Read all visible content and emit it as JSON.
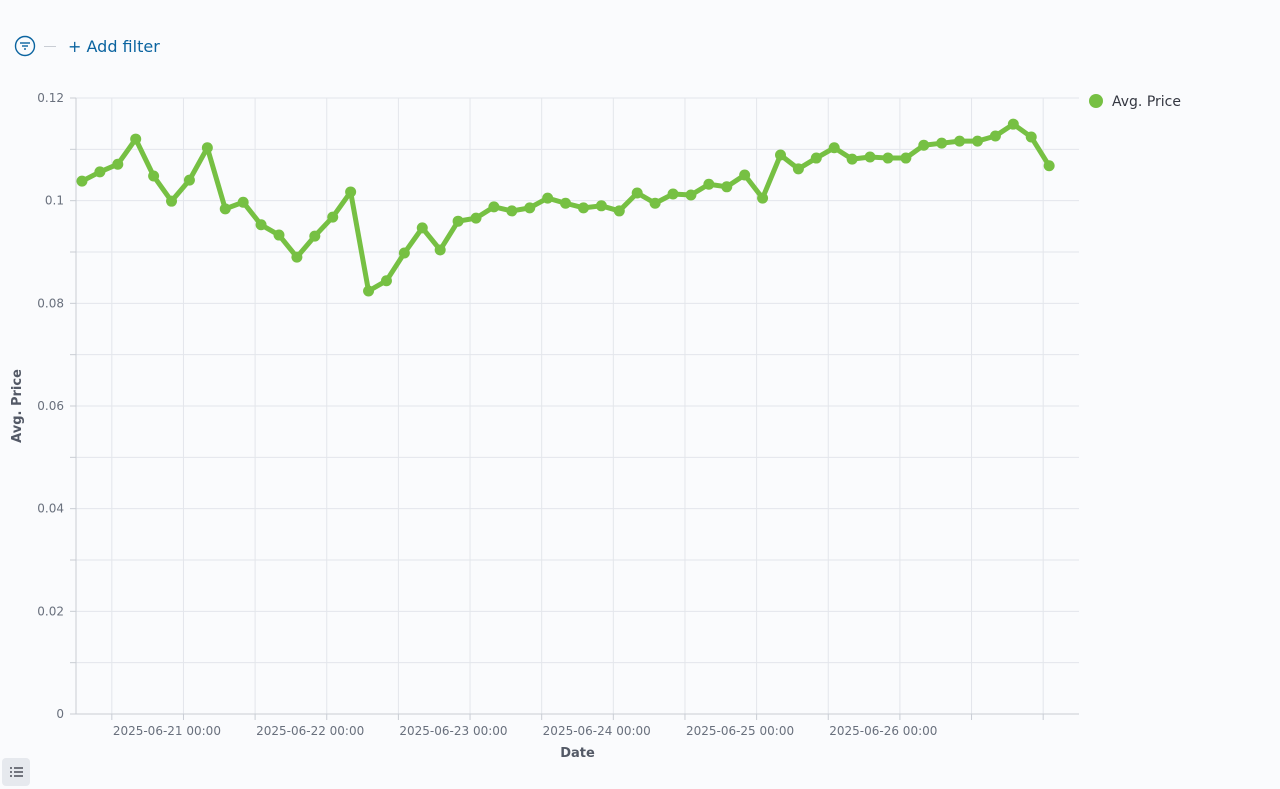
{
  "filter_bar": {
    "add_filter": "+ Add filter"
  },
  "chart_data": {
    "type": "line",
    "x_label": "Date",
    "y_label": "Avg. Price",
    "x": [
      "2025-06-20 19:00",
      "2025-06-20 22:00",
      "2025-06-21 01:00",
      "2025-06-21 04:00",
      "2025-06-21 07:00",
      "2025-06-21 10:00",
      "2025-06-21 13:00",
      "2025-06-21 16:00",
      "2025-06-21 19:00",
      "2025-06-21 22:00",
      "2025-06-22 01:00",
      "2025-06-22 04:00",
      "2025-06-22 07:00",
      "2025-06-22 10:00",
      "2025-06-22 13:00",
      "2025-06-22 16:00",
      "2025-06-22 19:00",
      "2025-06-22 22:00",
      "2025-06-23 01:00",
      "2025-06-23 04:00",
      "2025-06-23 07:00",
      "2025-06-23 10:00",
      "2025-06-23 13:00",
      "2025-06-23 16:00",
      "2025-06-23 19:00",
      "2025-06-23 22:00",
      "2025-06-24 01:00",
      "2025-06-24 04:00",
      "2025-06-24 07:00",
      "2025-06-24 10:00",
      "2025-06-24 13:00",
      "2025-06-24 16:00",
      "2025-06-24 19:00",
      "2025-06-24 22:00",
      "2025-06-25 01:00",
      "2025-06-25 04:00",
      "2025-06-25 07:00",
      "2025-06-25 10:00",
      "2025-06-25 13:00",
      "2025-06-25 16:00",
      "2025-06-25 19:00",
      "2025-06-25 22:00",
      "2025-06-26 01:00",
      "2025-06-26 04:00",
      "2025-06-26 07:00",
      "2025-06-26 10:00",
      "2025-06-26 13:00",
      "2025-06-26 16:00",
      "2025-06-26 19:00",
      "2025-06-26 22:00",
      "2025-06-27 01:00",
      "2025-06-27 04:00",
      "2025-06-27 07:00",
      "2025-06-27 10:00",
      "2025-06-27 13:00"
    ],
    "series": [
      {
        "name": "Avg. Price",
        "color": "#76c043",
        "values": [
          0.1038,
          0.1056,
          0.1071,
          0.112,
          0.1048,
          0.0999,
          0.104,
          0.1103,
          0.0984,
          0.0997,
          0.0953,
          0.0933,
          0.089,
          0.0931,
          0.0968,
          0.1017,
          0.0824,
          0.0844,
          0.0898,
          0.0947,
          0.0904,
          0.096,
          0.0966,
          0.0988,
          0.098,
          0.0986,
          0.1005,
          0.0995,
          0.0986,
          0.099,
          0.098,
          0.1015,
          0.0995,
          0.1013,
          0.1011,
          0.1032,
          0.1027,
          0.105,
          0.1005,
          0.1089,
          0.1062,
          0.1083,
          0.1103,
          0.1081,
          0.1085,
          0.1083,
          0.1083,
          0.1108,
          0.1112,
          0.1116,
          0.1116,
          0.1126,
          0.1149,
          0.1124,
          0.1068
        ]
      }
    ],
    "xlim": [
      "2025-06-20 18:00",
      "2025-06-27 18:00"
    ],
    "xticks": [
      "2025-06-21 00:00",
      {
        "value": "2025-06-21 12:00",
        "label": null
      },
      "2025-06-22 00:00",
      {
        "value": "2025-06-22 12:00",
        "label": null
      },
      "2025-06-23 00:00",
      {
        "value": "2025-06-23 12:00",
        "label": null
      },
      "2025-06-24 00:00",
      {
        "value": "2025-06-24 12:00",
        "label": null
      },
      "2025-06-25 00:00",
      {
        "value": "2025-06-25 12:00",
        "label": null
      },
      "2025-06-26 00:00",
      {
        "value": "2025-06-26 12:00",
        "label": null
      },
      {
        "value": "2025-06-27 00:00",
        "label": null
      },
      {
        "value": "2025-06-27 12:00",
        "label": null
      }
    ],
    "ylim": [
      0,
      0.12
    ],
    "yticks": [
      0,
      {
        "value": 0.01,
        "label": null
      },
      0.02,
      {
        "value": 0.03,
        "label": null
      },
      0.04,
      {
        "value": 0.05,
        "label": null
      },
      0.06,
      {
        "value": 0.07,
        "label": null
      },
      0.08,
      {
        "value": 0.09,
        "label": null
      },
      0.1,
      {
        "value": 0.11,
        "label": null
      },
      0.12
    ],
    "grid": true,
    "legend": "top-right"
  }
}
